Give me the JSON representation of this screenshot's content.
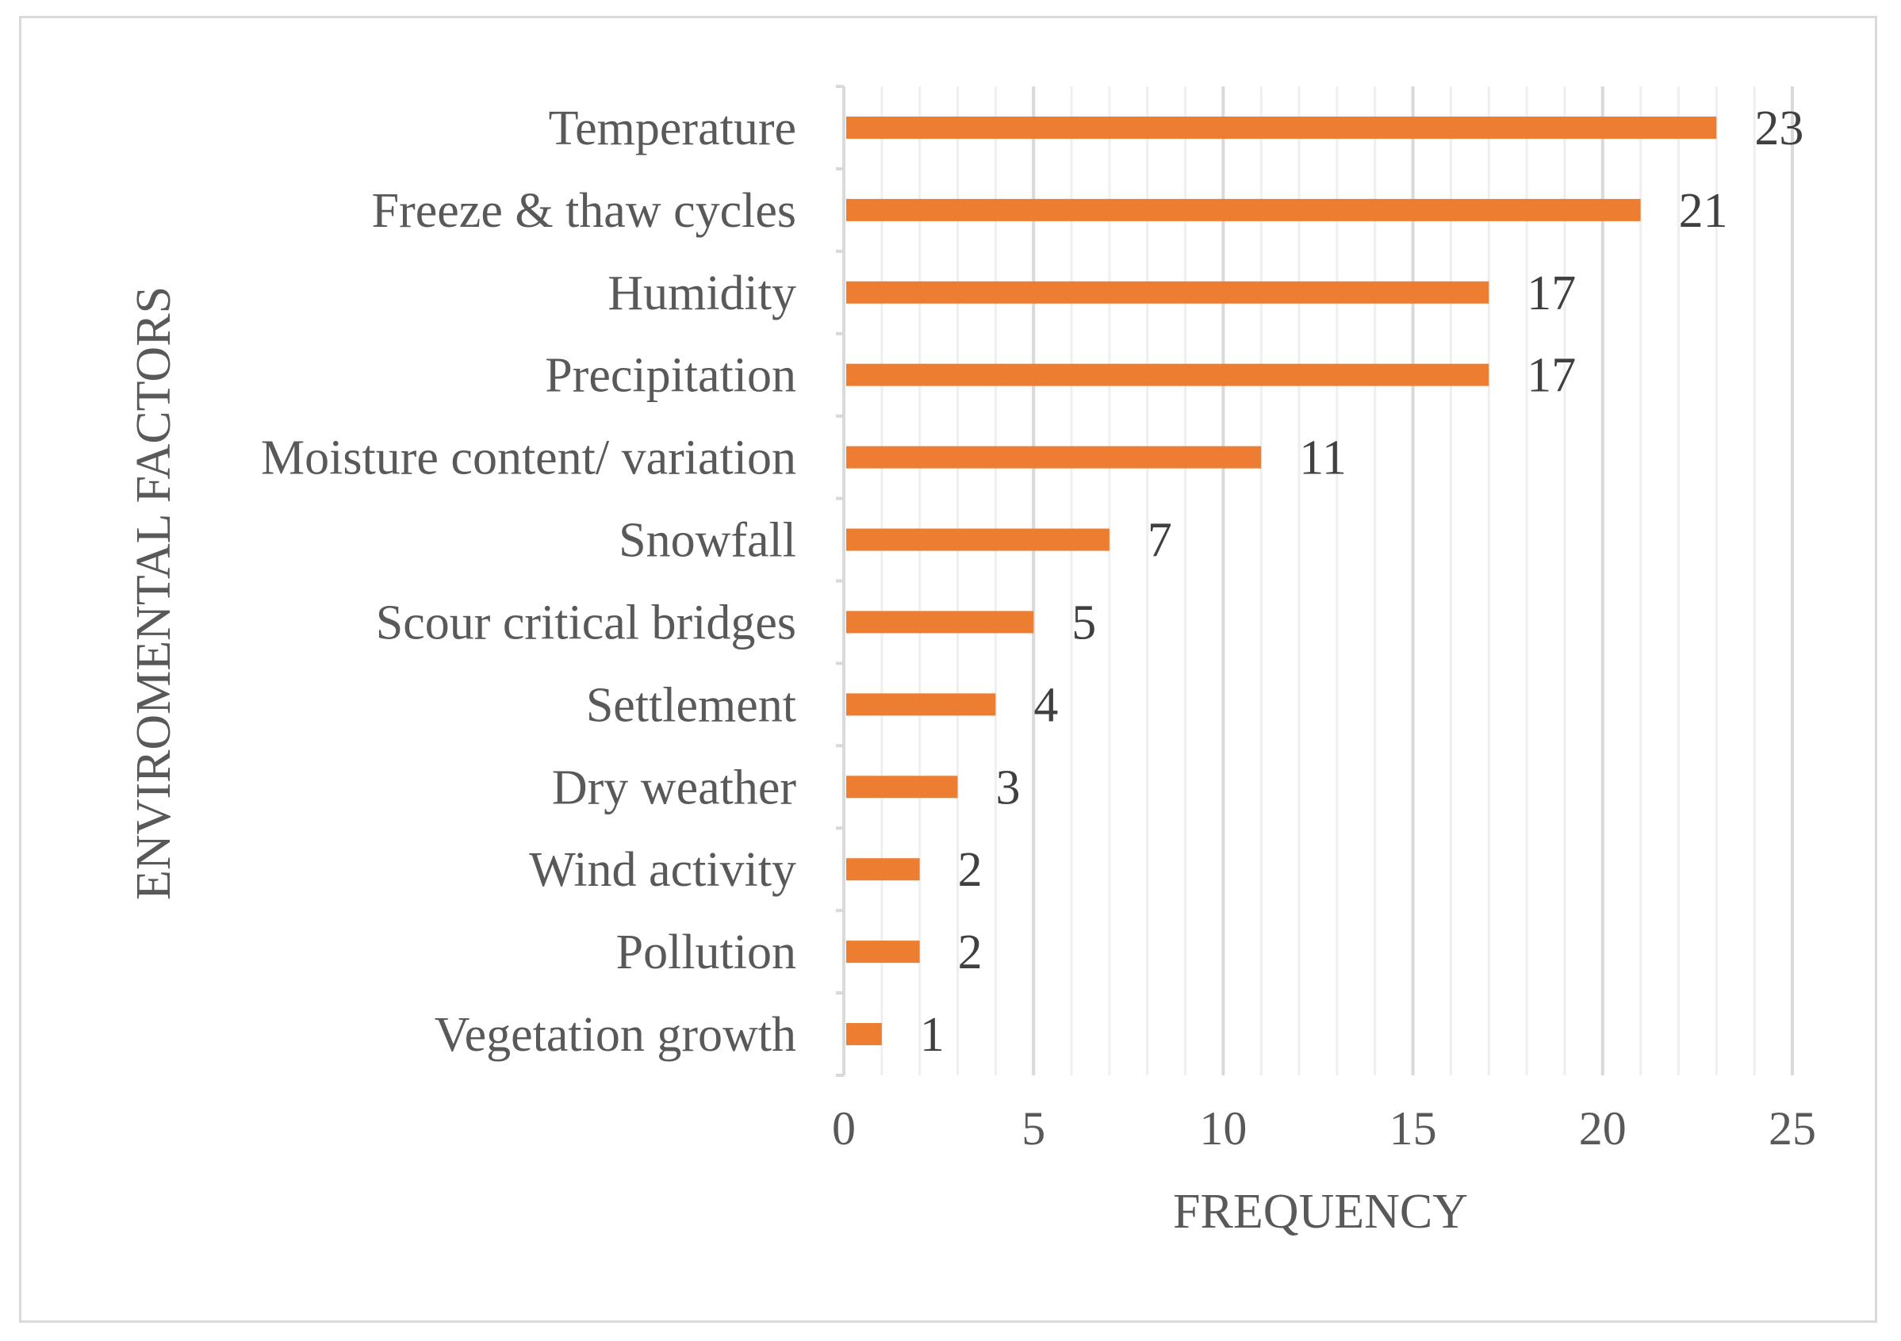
{
  "chart_data": {
    "type": "bar",
    "orientation": "horizontal",
    "title": "",
    "xlabel": "FREQUENCY",
    "ylabel": "ENVIROMENTAL FACTORS",
    "xlim": [
      0,
      25
    ],
    "xticks": [
      0,
      5,
      10,
      15,
      20,
      25
    ],
    "grid": "vertical",
    "categories": [
      "Temperature",
      "Freeze & thaw cycles",
      "Humidity",
      "Precipitation",
      "Moisture content/ variation",
      "Snowfall",
      "Scour critical bridges",
      "Settlement",
      "Dry weather",
      "Wind activity",
      "Pollution",
      "Vegetation growth"
    ],
    "values": [
      23,
      21,
      17,
      17,
      11,
      7,
      5,
      4,
      3,
      2,
      2,
      1
    ],
    "data_labels": [
      "23",
      "21",
      "17",
      "17",
      "11",
      "7",
      "5",
      "4",
      "3",
      "2",
      "2",
      "1"
    ],
    "colors": {
      "bar": "#ed7d31",
      "major_grid": "#d9d9d9",
      "minor_grid": "#efefef",
      "axis": "#d9d9d9",
      "text": "#595959",
      "data_label": "#404040"
    }
  }
}
